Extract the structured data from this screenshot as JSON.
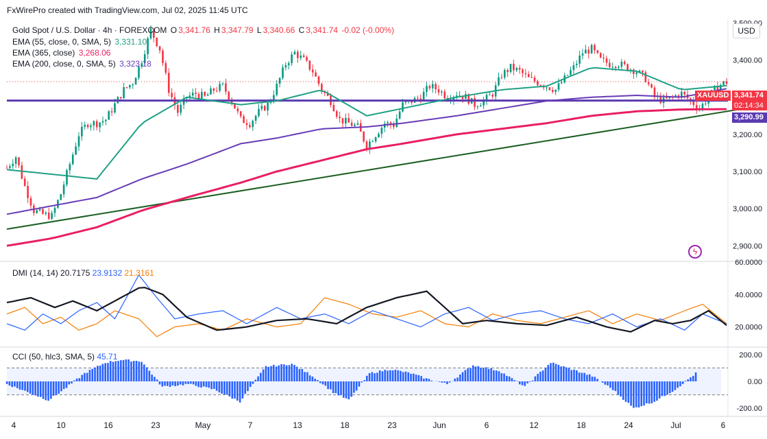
{
  "header": {
    "credit": "FxWirePro created with TradingView.com, Jul 02, 2025 11:45 UTC"
  },
  "legend": {
    "symbol": "Gold Spot / U.S. Dollar · 4h · FOREXCOM",
    "o_label": "O",
    "o": "3,341.76",
    "h_label": "H",
    "h": "3,347.79",
    "l_label": "L",
    "l": "3,340.66",
    "c_label": "C",
    "c": "3,341.74",
    "change": "-0.02 (-0.00%)",
    "ema55_label": "EMA (55, close, 0, SMA, 5)",
    "ema55_value": "3,331.10",
    "ema365_label": "EMA (365, close)",
    "ema365_value": "3,268.06",
    "ema200_label": "EMA (200, close, 0, SMA, 5)",
    "ema200_value": "3,323.18"
  },
  "currency": "USD",
  "price_tags": {
    "symbol": "XAUUSD",
    "last": "3,341.74",
    "countdown": "02:14:34",
    "hline": "3,290.99"
  },
  "colors": {
    "up": "#089981",
    "down": "#f23645",
    "ema55": "#1fa085",
    "ema365": "#e91e63",
    "ema200": "#673ab7",
    "hline": "#5b3bb0",
    "trend": "#1b5e20",
    "di_plus": "#2962ff",
    "di_minus": "#f57c00",
    "adx": "#131722",
    "cci": "#2962ff"
  },
  "chart_data": [
    {
      "type": "candlestick",
      "name": "Gold Spot / U.S. Dollar · 4h",
      "ylim": [
        2860,
        3510
      ],
      "yticks": [
        "2,900.00",
        "3,000.00",
        "3,100.00",
        "3,200.00",
        "3,300.00",
        "3,400.00",
        "3,500.00"
      ],
      "xticks": [
        "4",
        "10",
        "16",
        "23",
        "May",
        "7",
        "13",
        "18",
        "23",
        "Jun",
        "6",
        "12",
        "18",
        "24",
        "Jul",
        "6"
      ],
      "close_path": [
        [
          0,
          3110
        ],
        [
          3,
          3140
        ],
        [
          6,
          3060
        ],
        [
          9,
          2995
        ],
        [
          12,
          2985
        ],
        [
          15,
          2980
        ],
        [
          18,
          3040
        ],
        [
          21,
          3120
        ],
        [
          24,
          3200
        ],
        [
          27,
          3230
        ],
        [
          30,
          3230
        ],
        [
          33,
          3240
        ],
        [
          36,
          3280
        ],
        [
          39,
          3320
        ],
        [
          42,
          3340
        ],
        [
          45,
          3400
        ],
        [
          48,
          3480
        ],
        [
          51,
          3430
        ],
        [
          54,
          3320
        ],
        [
          57,
          3260
        ],
        [
          60,
          3300
        ],
        [
          63,
          3310
        ],
        [
          66,
          3300
        ],
        [
          69,
          3320
        ],
        [
          72,
          3330
        ],
        [
          75,
          3290
        ],
        [
          78,
          3240
        ],
        [
          81,
          3230
        ],
        [
          84,
          3260
        ],
        [
          87,
          3280
        ],
        [
          90,
          3330
        ],
        [
          93,
          3390
        ],
        [
          96,
          3420
        ],
        [
          99,
          3400
        ],
        [
          102,
          3370
        ],
        [
          105,
          3320
        ],
        [
          108,
          3290
        ],
        [
          111,
          3240
        ],
        [
          114,
          3230
        ],
        [
          117,
          3220
        ],
        [
          120,
          3170
        ],
        [
          123,
          3200
        ],
        [
          126,
          3230
        ],
        [
          129,
          3225
        ],
        [
          132,
          3280
        ],
        [
          135,
          3290
        ],
        [
          138,
          3300
        ],
        [
          141,
          3330
        ],
        [
          144,
          3320
        ],
        [
          147,
          3300
        ],
        [
          150,
          3310
        ],
        [
          153,
          3300
        ],
        [
          156,
          3280
        ],
        [
          159,
          3290
        ],
        [
          162,
          3310
        ],
        [
          165,
          3360
        ],
        [
          168,
          3380
        ],
        [
          171,
          3370
        ],
        [
          174,
          3350
        ],
        [
          177,
          3340
        ],
        [
          180,
          3330
        ],
        [
          183,
          3320
        ],
        [
          186,
          3350
        ],
        [
          189,
          3380
        ],
        [
          192,
          3420
        ],
        [
          195,
          3430
        ],
        [
          198,
          3400
        ],
        [
          201,
          3390
        ],
        [
          204,
          3390
        ],
        [
          207,
          3380
        ],
        [
          210,
          3370
        ],
        [
          213,
          3350
        ],
        [
          216,
          3300
        ],
        [
          219,
          3290
        ],
        [
          222,
          3300
        ],
        [
          225,
          3310
        ],
        [
          228,
          3290
        ],
        [
          231,
          3270
        ],
        [
          234,
          3300
        ],
        [
          237,
          3330
        ],
        [
          240,
          3341
        ]
      ],
      "ema55_path": [
        [
          0,
          3105
        ],
        [
          30,
          3080
        ],
        [
          45,
          3230
        ],
        [
          60,
          3300
        ],
        [
          78,
          3280
        ],
        [
          90,
          3290
        ],
        [
          105,
          3320
        ],
        [
          120,
          3250
        ],
        [
          132,
          3270
        ],
        [
          150,
          3300
        ],
        [
          165,
          3320
        ],
        [
          180,
          3330
        ],
        [
          195,
          3380
        ],
        [
          210,
          3370
        ],
        [
          225,
          3320
        ],
        [
          240,
          3331
        ]
      ],
      "ema200_path": [
        [
          0,
          2985
        ],
        [
          30,
          3030
        ],
        [
          45,
          3080
        ],
        [
          60,
          3120
        ],
        [
          78,
          3175
        ],
        [
          90,
          3190
        ],
        [
          105,
          3215
        ],
        [
          120,
          3220
        ],
        [
          132,
          3230
        ],
        [
          150,
          3250
        ],
        [
          165,
          3270
        ],
        [
          180,
          3290
        ],
        [
          195,
          3300
        ],
        [
          210,
          3305
        ],
        [
          225,
          3300
        ],
        [
          240,
          3323
        ]
      ],
      "ema365_path": [
        [
          0,
          2900
        ],
        [
          15,
          2920
        ],
        [
          30,
          2950
        ],
        [
          45,
          2995
        ],
        [
          60,
          3030
        ],
        [
          78,
          3070
        ],
        [
          90,
          3100
        ],
        [
          105,
          3130
        ],
        [
          120,
          3160
        ],
        [
          132,
          3175
        ],
        [
          150,
          3200
        ],
        [
          165,
          3215
        ],
        [
          180,
          3230
        ],
        [
          195,
          3250
        ],
        [
          210,
          3262
        ],
        [
          225,
          3267
        ],
        [
          240,
          3268
        ]
      ],
      "hline": 3290.99,
      "trendline": [
        [
          0,
          2945
        ],
        [
          250,
          3275
        ]
      ]
    },
    {
      "type": "line",
      "name": "DMI (14, 14)",
      "values_text": [
        "20.7175",
        "23.9132",
        "21.3161"
      ],
      "ylim": [
        8,
        60
      ],
      "yticks": [
        "20.0000",
        "40.0000",
        "60.0000"
      ],
      "adx_path": [
        [
          0,
          35
        ],
        [
          8,
          38
        ],
        [
          16,
          32
        ],
        [
          22,
          36
        ],
        [
          30,
          30
        ],
        [
          38,
          38
        ],
        [
          45,
          45
        ],
        [
          52,
          40
        ],
        [
          60,
          26
        ],
        [
          70,
          18
        ],
        [
          80,
          20
        ],
        [
          90,
          24
        ],
        [
          100,
          25
        ],
        [
          110,
          22
        ],
        [
          120,
          32
        ],
        [
          130,
          38
        ],
        [
          140,
          42
        ],
        [
          146,
          32
        ],
        [
          152,
          22
        ],
        [
          160,
          24
        ],
        [
          170,
          22
        ],
        [
          180,
          21
        ],
        [
          190,
          26
        ],
        [
          200,
          20
        ],
        [
          208,
          17
        ],
        [
          216,
          24
        ],
        [
          222,
          22
        ],
        [
          228,
          24
        ],
        [
          234,
          30
        ],
        [
          240,
          21
        ]
      ],
      "di_plus_path": [
        [
          0,
          22
        ],
        [
          6,
          18
        ],
        [
          12,
          28
        ],
        [
          18,
          22
        ],
        [
          24,
          30
        ],
        [
          30,
          35
        ],
        [
          36,
          25
        ],
        [
          44,
          52
        ],
        [
          50,
          38
        ],
        [
          56,
          25
        ],
        [
          64,
          28
        ],
        [
          72,
          30
        ],
        [
          80,
          22
        ],
        [
          90,
          32
        ],
        [
          98,
          25
        ],
        [
          106,
          28
        ],
        [
          114,
          22
        ],
        [
          122,
          30
        ],
        [
          130,
          25
        ],
        [
          138,
          20
        ],
        [
          146,
          28
        ],
        [
          154,
          32
        ],
        [
          162,
          24
        ],
        [
          170,
          28
        ],
        [
          178,
          30
        ],
        [
          186,
          25
        ],
        [
          194,
          22
        ],
        [
          202,
          28
        ],
        [
          210,
          20
        ],
        [
          218,
          25
        ],
        [
          226,
          18
        ],
        [
          232,
          28
        ],
        [
          240,
          22
        ]
      ],
      "di_minus_path": [
        [
          0,
          28
        ],
        [
          6,
          32
        ],
        [
          12,
          22
        ],
        [
          18,
          26
        ],
        [
          24,
          18
        ],
        [
          30,
          22
        ],
        [
          36,
          30
        ],
        [
          44,
          25
        ],
        [
          50,
          14
        ],
        [
          56,
          20
        ],
        [
          64,
          22
        ],
        [
          72,
          18
        ],
        [
          80,
          25
        ],
        [
          90,
          20
        ],
        [
          98,
          22
        ],
        [
          106,
          38
        ],
        [
          114,
          34
        ],
        [
          122,
          28
        ],
        [
          130,
          26
        ],
        [
          138,
          30
        ],
        [
          146,
          22
        ],
        [
          154,
          20
        ],
        [
          162,
          28
        ],
        [
          170,
          24
        ],
        [
          178,
          22
        ],
        [
          186,
          26
        ],
        [
          194,
          30
        ],
        [
          202,
          22
        ],
        [
          210,
          28
        ],
        [
          218,
          24
        ],
        [
          226,
          30
        ],
        [
          232,
          34
        ],
        [
          240,
          22
        ]
      ]
    },
    {
      "type": "bar",
      "name": "CCI (50, hlc3, SMA, 5)",
      "values_text": [
        "45.71"
      ],
      "ylim": [
        -250,
        250
      ],
      "yticks": [
        "200.00",
        "0.00",
        "-200.00"
      ],
      "band": [
        -100,
        100
      ],
      "cci_path": [
        [
          0,
          -20
        ],
        [
          8,
          -80
        ],
        [
          16,
          -140
        ],
        [
          22,
          -60
        ],
        [
          30,
          60
        ],
        [
          38,
          140
        ],
        [
          44,
          160
        ],
        [
          52,
          150
        ],
        [
          60,
          -40
        ],
        [
          70,
          -20
        ],
        [
          80,
          -60
        ],
        [
          90,
          -150
        ],
        [
          100,
          110
        ],
        [
          110,
          130
        ],
        [
          118,
          40
        ],
        [
          126,
          -80
        ],
        [
          132,
          -140
        ],
        [
          140,
          60
        ],
        [
          148,
          90
        ],
        [
          156,
          60
        ],
        [
          162,
          20
        ],
        [
          170,
          -20
        ],
        [
          180,
          120
        ],
        [
          190,
          80
        ],
        [
          200,
          -40
        ],
        [
          210,
          140
        ],
        [
          218,
          90
        ],
        [
          226,
          40
        ],
        [
          234,
          -60
        ],
        [
          242,
          -200
        ],
        [
          250,
          -150
        ],
        [
          258,
          -60
        ],
        [
          266,
          60
        ]
      ]
    }
  ]
}
